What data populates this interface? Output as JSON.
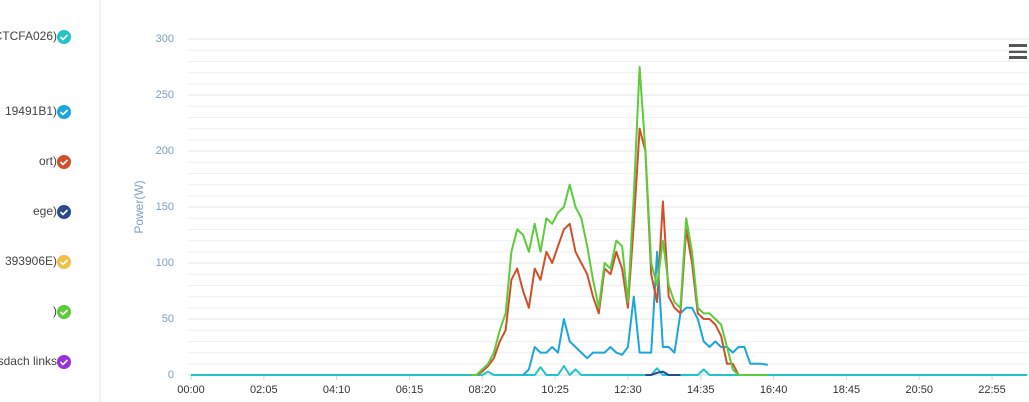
{
  "chart_data": {
    "type": "line",
    "y_label": "Power(W)",
    "x": [
      0,
      480,
      490,
      500,
      510,
      520,
      530,
      540,
      550,
      560,
      570,
      580,
      590,
      600,
      610,
      620,
      630,
      640,
      650,
      660,
      670,
      680,
      690,
      700,
      710,
      720,
      730,
      740,
      750,
      760,
      770,
      780,
      790,
      800,
      810,
      820,
      830,
      840,
      850,
      860,
      870,
      880,
      890,
      900,
      910,
      920,
      930,
      940,
      950,
      960,
      970,
      980,
      990,
      1435
    ],
    "xlim": [
      0,
      1435
    ],
    "xticks": [
      {
        "value": 0,
        "label": "00:00"
      },
      {
        "value": 125,
        "label": "02:05"
      },
      {
        "value": 250,
        "label": "04:10"
      },
      {
        "value": 375,
        "label": "06:15"
      },
      {
        "value": 500,
        "label": "08:20"
      },
      {
        "value": 625,
        "label": "10:25"
      },
      {
        "value": 750,
        "label": "12:30"
      },
      {
        "value": 875,
        "label": "14:35"
      },
      {
        "value": 1000,
        "label": "16:40"
      },
      {
        "value": 1125,
        "label": "18:45"
      },
      {
        "value": 1250,
        "label": "20:50"
      },
      {
        "value": 1375,
        "label": "22:55"
      }
    ],
    "ylim": [
      0,
      300
    ],
    "yticks": [
      0,
      50,
      100,
      150,
      200,
      250,
      300
    ],
    "minor_yticks": [
      10,
      20,
      30,
      40,
      60,
      70,
      80,
      90,
      110,
      120,
      130,
      140,
      160,
      170,
      180,
      190,
      210,
      220,
      230,
      240,
      260,
      270,
      280,
      290
    ],
    "grid": true,
    "series": [
      {
        "name": "CTCFA026)",
        "color": "#22c3c9",
        "values": [
          0,
          0,
          0,
          0,
          3,
          0,
          0,
          0,
          0,
          0,
          0,
          0,
          0,
          7,
          0,
          0,
          0,
          8,
          0,
          5,
          0,
          0,
          0,
          0,
          0,
          0,
          0,
          0,
          0,
          0,
          0,
          0,
          0,
          6,
          0,
          0,
          0,
          0,
          0,
          0,
          0,
          5,
          0,
          0,
          0,
          0,
          0,
          0,
          0,
          0,
          0,
          0,
          0,
          0
        ]
      },
      {
        "name": "19491B1)",
        "color": "#1ba6de",
        "values": [
          null,
          null,
          null,
          null,
          null,
          null,
          null,
          null,
          null,
          null,
          0,
          5,
          25,
          20,
          20,
          25,
          20,
          50,
          30,
          25,
          20,
          15,
          20,
          20,
          20,
          25,
          20,
          18,
          25,
          70,
          20,
          20,
          20,
          110,
          25,
          25,
          20,
          55,
          60,
          60,
          50,
          30,
          25,
          30,
          25,
          25,
          20,
          25,
          25,
          10,
          10,
          10,
          9,
          null
        ]
      },
      {
        "name": "ort)",
        "color": "#d0502a",
        "values": [
          null,
          0,
          0,
          3,
          8,
          15,
          30,
          40,
          85,
          95,
          75,
          60,
          95,
          85,
          110,
          100,
          115,
          130,
          135,
          110,
          100,
          90,
          70,
          55,
          95,
          90,
          110,
          95,
          60,
          135,
          220,
          200,
          90,
          65,
          155,
          70,
          60,
          55,
          130,
          100,
          55,
          50,
          50,
          45,
          35,
          10,
          10,
          0,
          0,
          0,
          0,
          0,
          0,
          null
        ]
      },
      {
        "name": "ege)",
        "color": "#2b4a8b",
        "values": [
          null,
          null,
          null,
          null,
          null,
          null,
          null,
          null,
          null,
          null,
          null,
          null,
          null,
          null,
          null,
          null,
          null,
          null,
          null,
          null,
          null,
          null,
          null,
          null,
          null,
          null,
          null,
          null,
          null,
          null,
          null,
          0,
          0,
          2,
          3,
          0,
          0,
          0,
          null,
          null,
          null,
          null,
          null,
          null,
          null,
          null,
          null,
          null,
          null,
          null,
          null,
          null,
          null,
          null
        ]
      },
      {
        "name": "393906E)",
        "color": "#f0c04a",
        "values": [
          null,
          null,
          null,
          null,
          null,
          null,
          null,
          null,
          null,
          null,
          null,
          null,
          null,
          null,
          null,
          null,
          null,
          null,
          null,
          null,
          null,
          null,
          null,
          null,
          null,
          null,
          null,
          null,
          null,
          null,
          null,
          null,
          null,
          null,
          null,
          null,
          null,
          null,
          null,
          null,
          null,
          null,
          null,
          null,
          null,
          null,
          null,
          null,
          null,
          null,
          null,
          null,
          null,
          null
        ]
      },
      {
        "name": ")",
        "color": "#5ccc3a",
        "values": [
          null,
          0,
          0,
          5,
          10,
          20,
          40,
          55,
          110,
          130,
          125,
          110,
          135,
          110,
          140,
          135,
          145,
          150,
          170,
          150,
          140,
          115,
          85,
          60,
          100,
          95,
          120,
          115,
          65,
          160,
          275,
          200,
          100,
          80,
          120,
          80,
          65,
          60,
          140,
          110,
          60,
          55,
          55,
          50,
          45,
          25,
          5,
          0,
          0,
          0,
          0,
          0,
          0,
          null
        ]
      },
      {
        "name": "sdach links",
        "color": "#9b2fd8",
        "values": [
          null,
          null,
          null,
          null,
          null,
          null,
          null,
          null,
          null,
          null,
          null,
          null,
          null,
          null,
          null,
          null,
          null,
          null,
          null,
          null,
          null,
          null,
          null,
          null,
          null,
          null,
          null,
          null,
          null,
          null,
          null,
          null,
          null,
          null,
          null,
          null,
          null,
          null,
          null,
          null,
          null,
          null,
          null,
          null,
          null,
          null,
          null,
          null,
          null,
          null,
          null,
          null,
          null,
          null
        ]
      }
    ]
  }
}
